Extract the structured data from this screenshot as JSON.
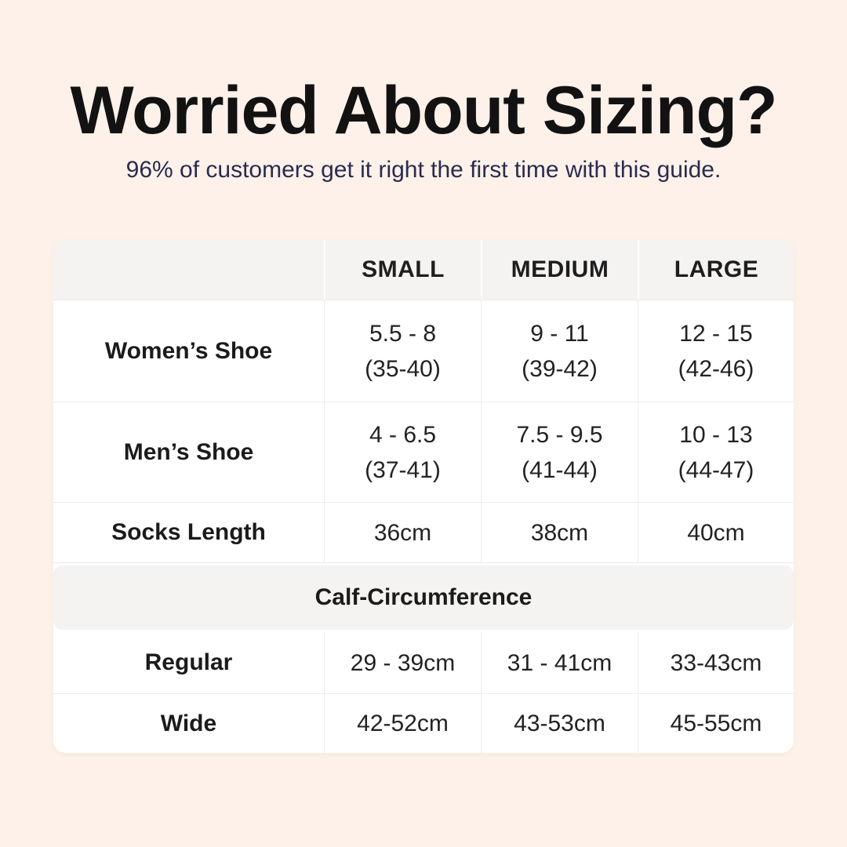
{
  "header": {
    "title": "Worried About Sizing?",
    "subtitle": "96% of customers get it right the first time with this guide."
  },
  "table": {
    "column_headers": [
      "SMALL",
      "MEDIUM",
      "LARGE"
    ],
    "shoe_rows": [
      {
        "label": "Women’s Shoe",
        "cells": [
          {
            "main": "5.5 - 8",
            "sub": "(35-40)"
          },
          {
            "main": "9 - 11",
            "sub": "(39-42)"
          },
          {
            "main": "12 - 15",
            "sub": "(42-46)"
          }
        ]
      },
      {
        "label": "Men’s Shoe",
        "cells": [
          {
            "main": "4 - 6.5",
            "sub": "(37-41)"
          },
          {
            "main": "7.5 - 9.5",
            "sub": "(41-44)"
          },
          {
            "main": "10 - 13",
            "sub": "(44-47)"
          }
        ]
      },
      {
        "label": "Socks Length",
        "cells": [
          {
            "main": "36cm"
          },
          {
            "main": "38cm"
          },
          {
            "main": "40cm"
          }
        ]
      }
    ],
    "section_header": "Calf-Circumference",
    "calf_rows": [
      {
        "label": "Regular",
        "cells": [
          {
            "main": "29 - 39cm"
          },
          {
            "main": "31 - 41cm"
          },
          {
            "main": "33-43cm"
          }
        ]
      },
      {
        "label": "Wide",
        "cells": [
          {
            "main": "42-52cm"
          },
          {
            "main": "43-53cm"
          },
          {
            "main": "45-55cm"
          }
        ]
      }
    ]
  },
  "colors": {
    "background": "#fdf1e9",
    "card": "#ffffff",
    "band": "#f4f3f1",
    "title_text": "#121212",
    "subtitle_text": "#282c4e",
    "table_text": "#222222",
    "divider": "#ececec"
  },
  "chart_data": {
    "type": "table",
    "title": "Worried About Sizing?",
    "subtitle": "96% of customers get it right the first time with this guide.",
    "columns": [
      "",
      "SMALL",
      "MEDIUM",
      "LARGE"
    ],
    "rows": [
      [
        "Women’s Shoe",
        "5.5 - 8 (35-40)",
        "9 - 11 (39-42)",
        "12 - 15 (42-46)"
      ],
      [
        "Men’s Shoe",
        "4 - 6.5 (37-41)",
        "7.5 - 9.5 (41-44)",
        "10 - 13 (44-47)"
      ],
      [
        "Socks Length",
        "36cm",
        "38cm",
        "40cm"
      ],
      [
        "Calf-Circumference (section header, spans all columns)",
        "",
        "",
        ""
      ],
      [
        "Regular",
        "29 - 39cm",
        "31 - 41cm",
        "33-43cm"
      ],
      [
        "Wide",
        "42-52cm",
        "43-53cm",
        "45-55cm"
      ]
    ],
    "layout": "header row and section band have light gray background; table card is white with rounded corners on light peach page background"
  }
}
